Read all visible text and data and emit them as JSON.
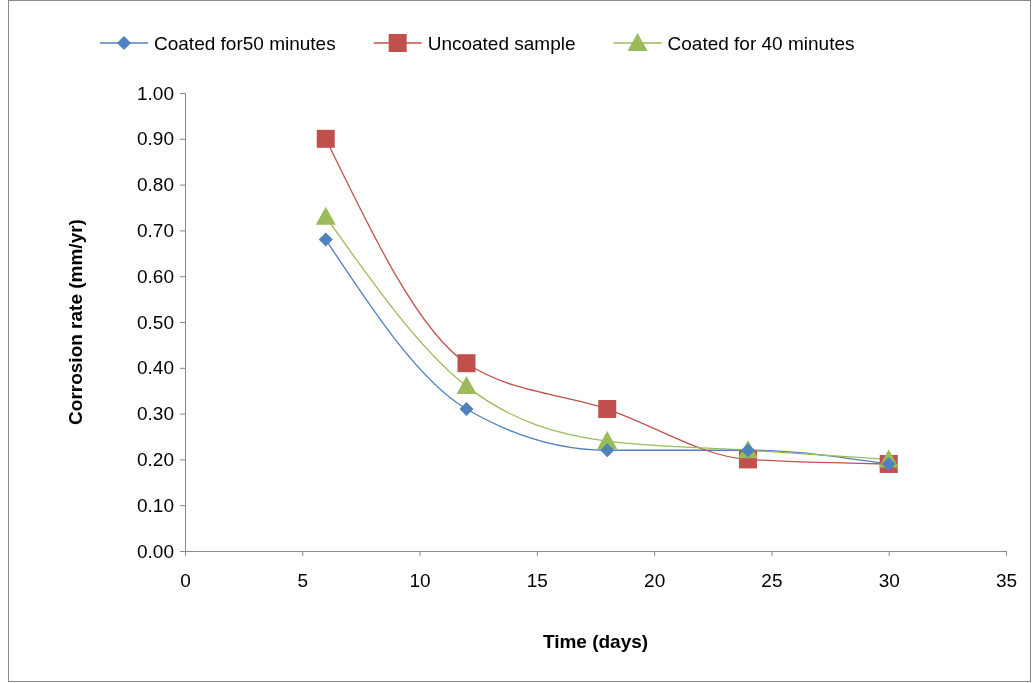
{
  "chart_data": {
    "type": "line",
    "xlabel": "Time (days)",
    "ylabel": "Corrosion rate (mm/yr)",
    "x": [
      6,
      12,
      18,
      24,
      30
    ],
    "xlim": [
      0,
      35
    ],
    "xticks": [
      0,
      5,
      10,
      15,
      20,
      25,
      30,
      35
    ],
    "ylim": [
      0,
      1
    ],
    "yticks": [
      {
        "value": 0,
        "label": "0.00"
      },
      {
        "value": 0.1,
        "label": "0.10"
      },
      {
        "value": 0.2,
        "label": "0.20"
      },
      {
        "value": 0.3,
        "label": "0.30"
      },
      {
        "value": 0.4,
        "label": "0.40"
      },
      {
        "value": 0.5,
        "label": "0.50"
      },
      {
        "value": 0.6,
        "label": "0.60"
      },
      {
        "value": 0.7,
        "label": "0.70"
      },
      {
        "value": 0.8,
        "label": "0.80"
      },
      {
        "value": 0.9,
        "label": "0.90"
      },
      {
        "value": 1,
        "label": "1.00"
      }
    ],
    "grid": false,
    "legend": "top",
    "line_style": "solid",
    "series": [
      {
        "name": "Coated for50 minutes",
        "color": "#4f81bd",
        "marker": "diamond",
        "values": [
          0.68,
          0.31,
          0.22,
          0.22,
          0.19
        ]
      },
      {
        "name": "Uncoated sample",
        "color": "#c0504d",
        "marker": "square",
        "values": [
          0.9,
          0.41,
          0.31,
          0.2,
          0.19
        ]
      },
      {
        "name": "Coated for 40 minutes",
        "color": "#9bbb59",
        "marker": "triangle",
        "values": [
          0.73,
          0.36,
          0.24,
          0.22,
          0.2
        ]
      }
    ]
  }
}
